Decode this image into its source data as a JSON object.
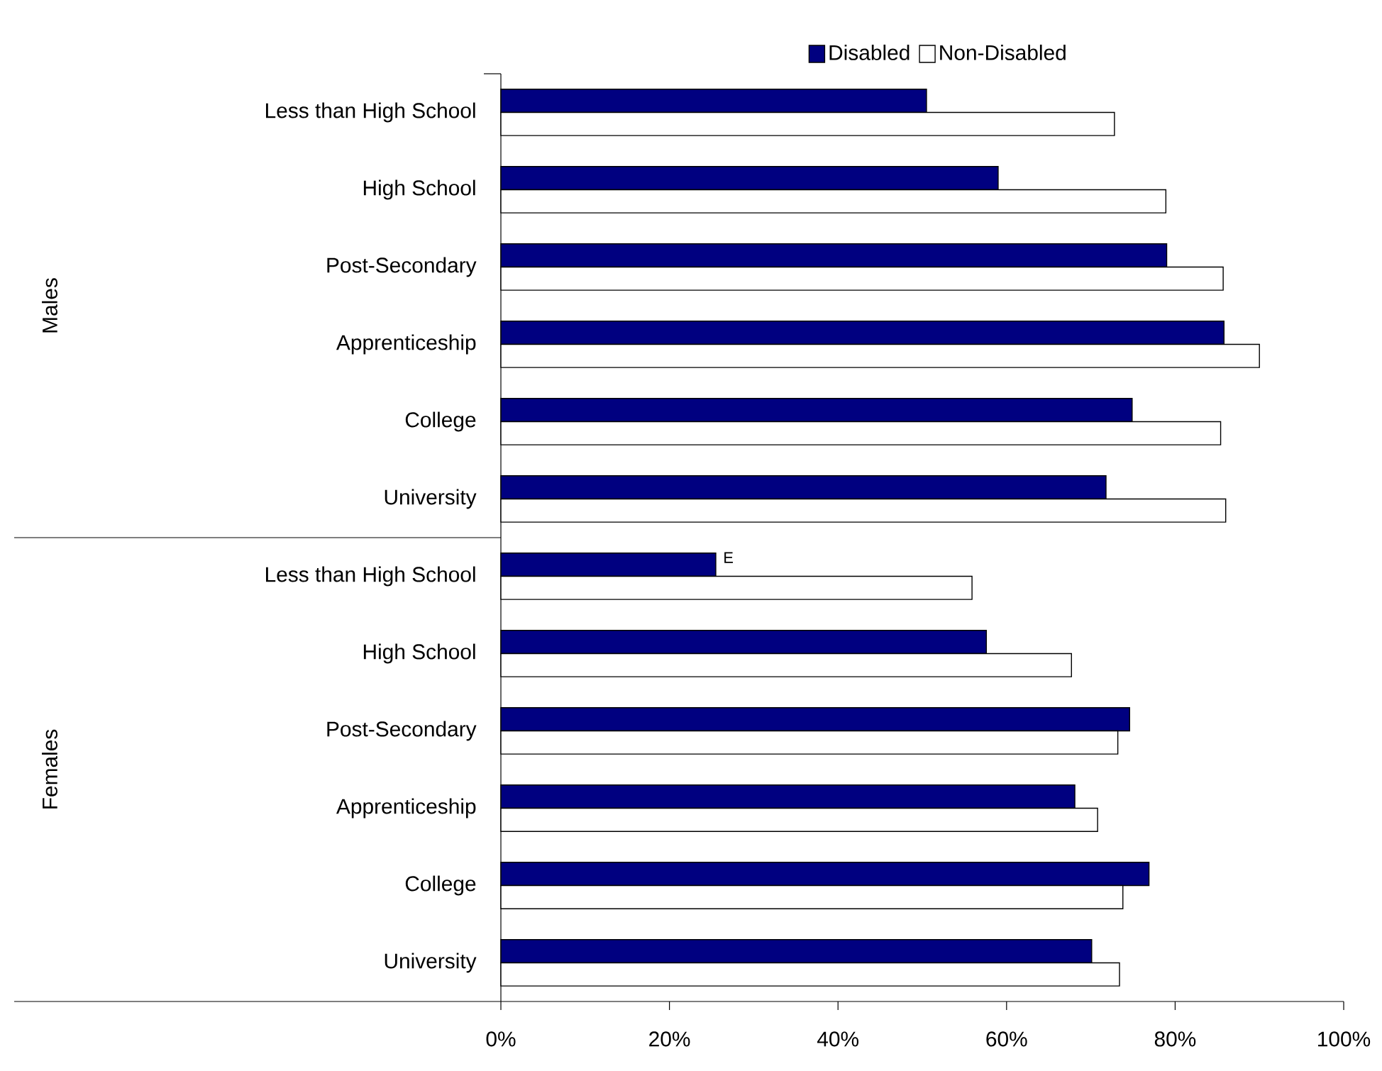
{
  "chart_data": {
    "type": "bar",
    "orientation": "horizontal",
    "categories": [
      "Less than High School",
      "High School",
      "Post-Secondary",
      "Apprenticeship",
      "College",
      "University",
      "Less than High School",
      "High School",
      "Post-Secondary",
      "Apprenticeship",
      "College",
      "University"
    ],
    "series": [
      {
        "name": "Disabled",
        "color": "#000080",
        "values": [
          50.5,
          59.0,
          79.0,
          85.8,
          74.9,
          71.8,
          25.5,
          57.6,
          74.6,
          68.1,
          76.9,
          70.1
        ],
        "value_labels": [
          null,
          null,
          null,
          null,
          null,
          null,
          "E",
          null,
          null,
          null,
          null,
          null
        ]
      },
      {
        "name": "Non-Disabled",
        "color": "#ffffff",
        "values": [
          72.8,
          78.9,
          85.7,
          90.0,
          85.4,
          86.0,
          55.9,
          67.7,
          73.2,
          70.8,
          73.8,
          73.4
        ]
      }
    ],
    "annotations": [
      "Males",
      "Females"
    ],
    "xlim": [
      0,
      100
    ],
    "xticks": [
      {
        "value": 0,
        "label": "0%"
      },
      {
        "value": 20,
        "label": "20%"
      },
      {
        "value": 40,
        "label": "40%"
      },
      {
        "value": 60,
        "label": "60%"
      },
      {
        "value": 80,
        "label": "80%"
      },
      {
        "value": 100,
        "label": "100%"
      }
    ],
    "legend": "top",
    "grid": false
  }
}
